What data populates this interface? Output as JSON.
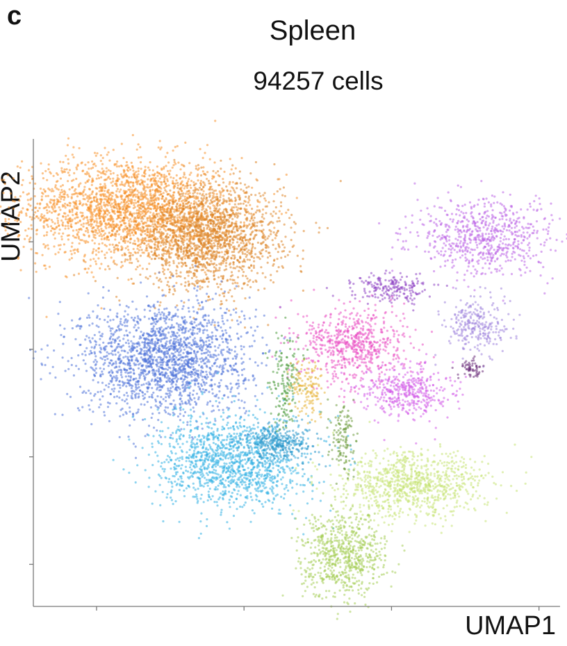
{
  "panel_letter": "c",
  "chart_data": {
    "type": "scatter",
    "title": "Spleen",
    "subtitle": "94257 cells",
    "xlabel": "UMAP1",
    "ylabel": "UMAP2",
    "xlim": [
      0,
      100
    ],
    "ylim": [
      0,
      100
    ],
    "grid": false,
    "legend": "none",
    "x_ticks": [
      12,
      40,
      68,
      96
    ],
    "y_ticks": [
      9,
      32,
      55,
      78
    ],
    "clusters": [
      {
        "color": "#f7922a",
        "center": [
          18,
          85
        ],
        "spread": [
          10,
          5.5
        ],
        "count": 2200
      },
      {
        "color": "#dc8424",
        "center": [
          33,
          79
        ],
        "spread": [
          7,
          5.5
        ],
        "count": 1800
      },
      {
        "color": "#4f72d9",
        "center": [
          25,
          53
        ],
        "spread": [
          8,
          6
        ],
        "count": 1900
      },
      {
        "color": "#31b0e3",
        "center": [
          38,
          31
        ],
        "spread": [
          7,
          5
        ],
        "count": 1300
      },
      {
        "color": "#2494c9",
        "center": [
          47,
          35
        ],
        "spread": [
          3.5,
          2
        ],
        "count": 300
      },
      {
        "color": "#c6e475",
        "center": [
          72,
          26
        ],
        "spread": [
          7,
          3.5
        ],
        "count": 900
      },
      {
        "color": "#a6cd58",
        "center": [
          59,
          11
        ],
        "spread": [
          4,
          4.5
        ],
        "count": 700
      },
      {
        "color": "#e94fc2",
        "center": [
          61,
          56
        ],
        "spread": [
          5,
          4
        ],
        "count": 650
      },
      {
        "color": "#d25ae8",
        "center": [
          71,
          46
        ],
        "spread": [
          4,
          2.8
        ],
        "count": 400
      },
      {
        "color": "#bc64e6",
        "center": [
          86,
          79
        ],
        "spread": [
          7,
          4
        ],
        "count": 700
      },
      {
        "color": "#8d3fc2",
        "center": [
          68,
          68
        ],
        "spread": [
          3.5,
          1.5
        ],
        "count": 200
      },
      {
        "color": "#9e84dc",
        "center": [
          84,
          60
        ],
        "spread": [
          3,
          3
        ],
        "count": 260
      },
      {
        "color": "#6a2c78",
        "center": [
          83,
          51
        ],
        "spread": [
          1.2,
          1
        ],
        "count": 60
      },
      {
        "color": "#4a9a3c",
        "center": [
          48,
          48
        ],
        "spread": [
          1.5,
          5
        ],
        "count": 160
      },
      {
        "color": "#e8b43a",
        "center": [
          52,
          47
        ],
        "spread": [
          1.5,
          3
        ],
        "count": 140
      },
      {
        "color": "#6b9a3c",
        "center": [
          59,
          36
        ],
        "spread": [
          1.2,
          4
        ],
        "count": 120
      }
    ]
  }
}
